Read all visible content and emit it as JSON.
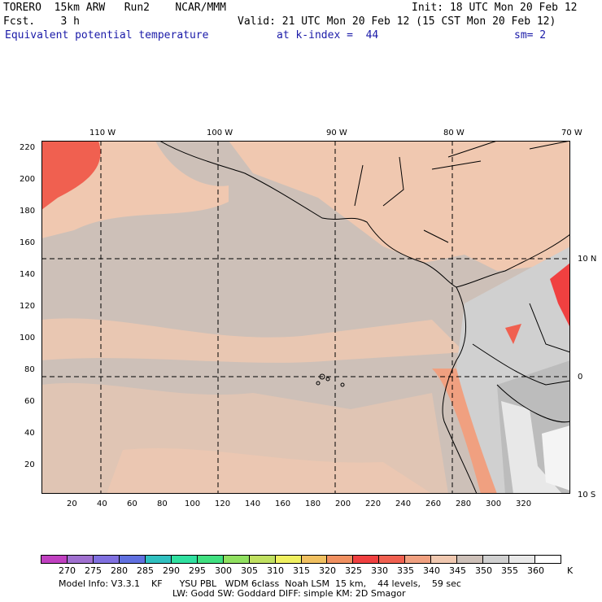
{
  "header": {
    "title_left": "TORERO  15km ARW   Run2    NCAR/MMM",
    "init": "Init: 18 UTC Mon 20 Feb 12",
    "fcst": "Fcst.    3 h",
    "valid": "Valid: 21 UTC Mon 20 Feb 12 (15 CST Mon 20 Feb 12)",
    "field": "Equivalent potential temperature",
    "level": "at k-index =  44",
    "smooth": "sm= 2"
  },
  "map": {
    "lon_labels": [
      "110 W",
      "100 W",
      "90 W",
      "80 W",
      "70 W"
    ],
    "lat_labels": [
      "10 N",
      "0",
      "10 S"
    ],
    "x_ticks": [
      "20",
      "40",
      "60",
      "80",
      "100",
      "120",
      "140",
      "160",
      "180",
      "200",
      "220",
      "240",
      "260",
      "280",
      "300",
      "320"
    ],
    "y_ticks": [
      "220",
      "200",
      "180",
      "160",
      "140",
      "120",
      "100",
      "80",
      "60",
      "40",
      "20"
    ]
  },
  "colorbar": {
    "labels": [
      "270",
      "275",
      "280",
      "285",
      "290",
      "295",
      "300",
      "305",
      "310",
      "315",
      "320",
      "325",
      "330",
      "335",
      "340",
      "345",
      "350",
      "355",
      "360"
    ],
    "unit": "K",
    "colors": [
      "#c040c0",
      "#a070d0",
      "#8070e0",
      "#6070e0",
      "#30c0c0",
      "#30e0a0",
      "#40e080",
      "#90e060",
      "#c0e060",
      "#f0f060",
      "#f0c060",
      "#f09060",
      "#f04040",
      "#f06050",
      "#f0a080",
      "#f0c8b0",
      "#cdc0b8",
      "#d0d0d0",
      "#e8e8e8",
      "#ffffff"
    ]
  },
  "footer": {
    "line1": "Model Info: V3.3.1    KF      YSU PBL   WDM 6class  Noah LSM  15 km,    44 levels,    59 sec",
    "line2": "LW: Godd SW: Goddard DIFF: simple KM: 2D Smagor"
  }
}
